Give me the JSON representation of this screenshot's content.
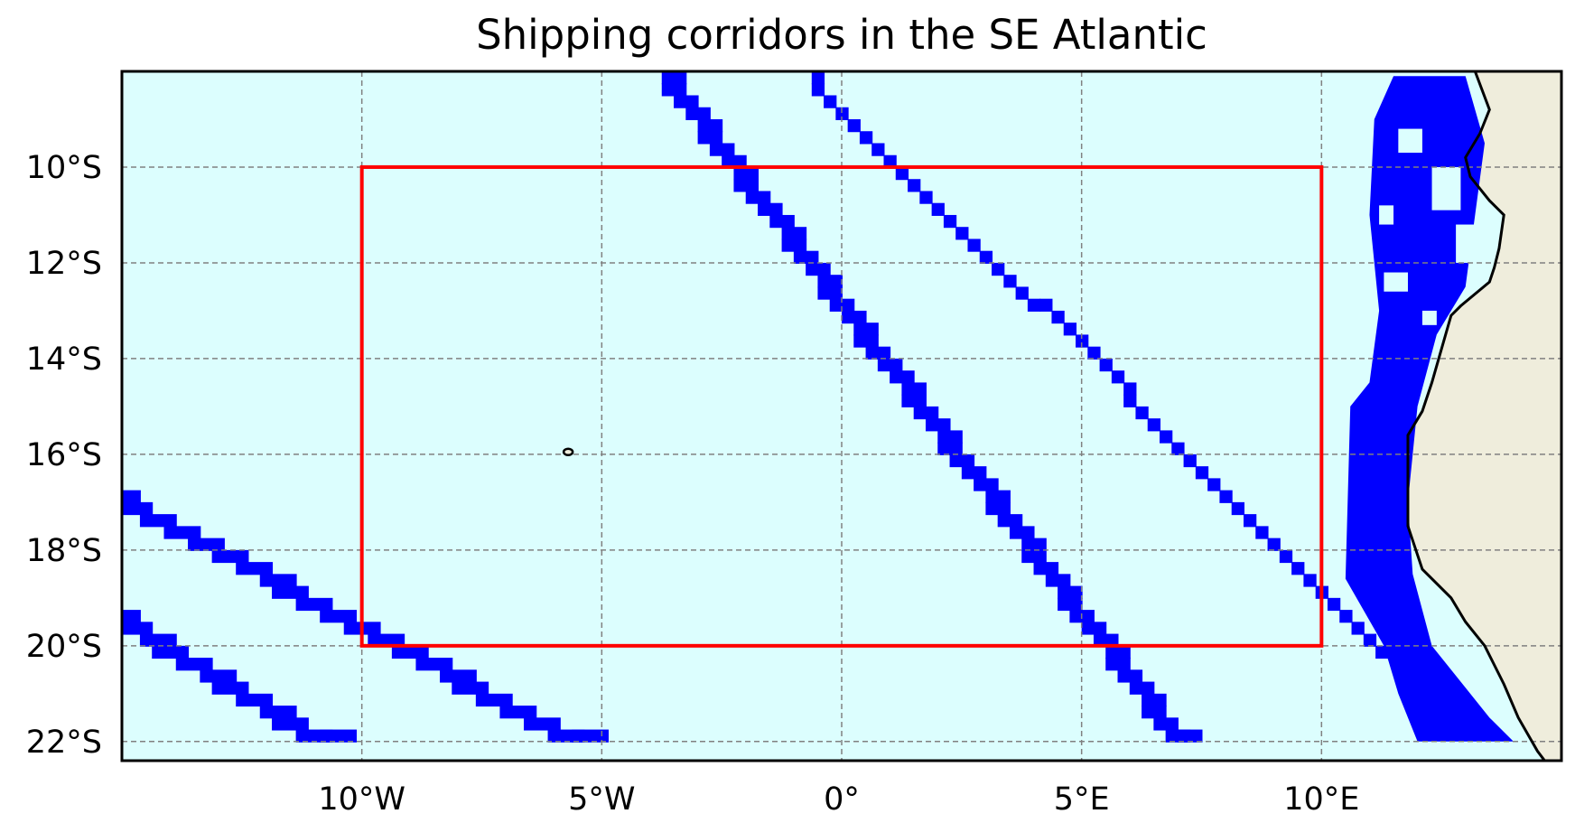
{
  "map": {
    "title": "Shipping corridors in the SE Atlantic",
    "extent": {
      "lon": [
        -15,
        15
      ],
      "lat": [
        -22.4,
        -8
      ]
    },
    "colors": {
      "ocean": "#dcfefe",
      "land": "#efeddc",
      "corridor": "#0000ff",
      "box": "#ff0000",
      "coast": "#000000",
      "grid": "#808080"
    },
    "x_ticks": [
      {
        "value": -10,
        "label": "10°W"
      },
      {
        "value": -5,
        "label": "5°W"
      },
      {
        "value": 0,
        "label": "0°"
      },
      {
        "value": 5,
        "label": "5°E"
      },
      {
        "value": 10,
        "label": "10°E"
      }
    ],
    "y_ticks": [
      {
        "value": -10,
        "label": "10°S"
      },
      {
        "value": -12,
        "label": "12°S"
      },
      {
        "value": -14,
        "label": "14°S"
      },
      {
        "value": -16,
        "label": "16°S"
      },
      {
        "value": -18,
        "label": "18°S"
      },
      {
        "value": -20,
        "label": "20°S"
      },
      {
        "value": -22,
        "label": "22°S"
      }
    ],
    "region_box": {
      "lon": [
        -10,
        10
      ],
      "lat": [
        -20,
        -10
      ]
    },
    "corridors": [
      {
        "name": "",
        "from": [
          -3.5,
          -8.1
        ],
        "to": [
          7.3,
          -22
        ],
        "width_deg": 0.55
      },
      {
        "name": "",
        "from": [
          -0.5,
          -8.1
        ],
        "to": [
          11.3,
          -20.1
        ],
        "width_deg": 0.25
      },
      {
        "name": "",
        "from": [
          -15,
          -16.9
        ],
        "to": [
          -5.2,
          -22
        ],
        "width_deg": 0.7
      },
      {
        "name": "",
        "from": [
          -15,
          -19.3
        ],
        "to": [
          -10.5,
          -22
        ],
        "width_deg": 0.7
      }
    ],
    "coastal_band": [
      [
        11.5,
        -8.1
      ],
      [
        13.0,
        -8.1
      ],
      [
        13.4,
        -9.5
      ],
      [
        13.2,
        -11
      ],
      [
        13.0,
        -12.5
      ],
      [
        12.4,
        -13.5
      ],
      [
        12.0,
        -15
      ],
      [
        11.8,
        -17
      ],
      [
        11.9,
        -18.5
      ],
      [
        12.3,
        -20
      ],
      [
        13.5,
        -21.5
      ],
      [
        14.0,
        -22
      ],
      [
        12.0,
        -22
      ],
      [
        11.6,
        -21
      ],
      [
        11.3,
        -20
      ],
      [
        10.5,
        -18.6
      ],
      [
        10.6,
        -15
      ],
      [
        11.0,
        -14.5
      ],
      [
        11.2,
        -13
      ],
      [
        11.0,
        -11
      ],
      [
        11.1,
        -9
      ]
    ],
    "coastline": [
      [
        13.2,
        -8.0
      ],
      [
        13.5,
        -8.8
      ],
      [
        13.3,
        -9.3
      ],
      [
        13.0,
        -9.8
      ],
      [
        13.1,
        -10.2
      ],
      [
        13.5,
        -10.7
      ],
      [
        13.8,
        -11.0
      ],
      [
        13.7,
        -11.7
      ],
      [
        13.6,
        -12.1
      ],
      [
        13.5,
        -12.4
      ],
      [
        12.9,
        -12.9
      ],
      [
        12.7,
        -13.1
      ],
      [
        12.5,
        -13.8
      ],
      [
        12.3,
        -14.5
      ],
      [
        12.1,
        -15.1
      ],
      [
        11.8,
        -15.6
      ],
      [
        11.8,
        -16.2
      ],
      [
        11.8,
        -17.0
      ],
      [
        11.8,
        -17.5
      ],
      [
        12.1,
        -18.4
      ],
      [
        12.7,
        -19.0
      ],
      [
        13.0,
        -19.5
      ],
      [
        13.4,
        -20.0
      ],
      [
        13.8,
        -20.8
      ],
      [
        14.1,
        -21.5
      ],
      [
        14.5,
        -22.2
      ],
      [
        14.8,
        -22.6
      ]
    ],
    "island": {
      "lon": -5.7,
      "lat": -15.95
    }
  }
}
